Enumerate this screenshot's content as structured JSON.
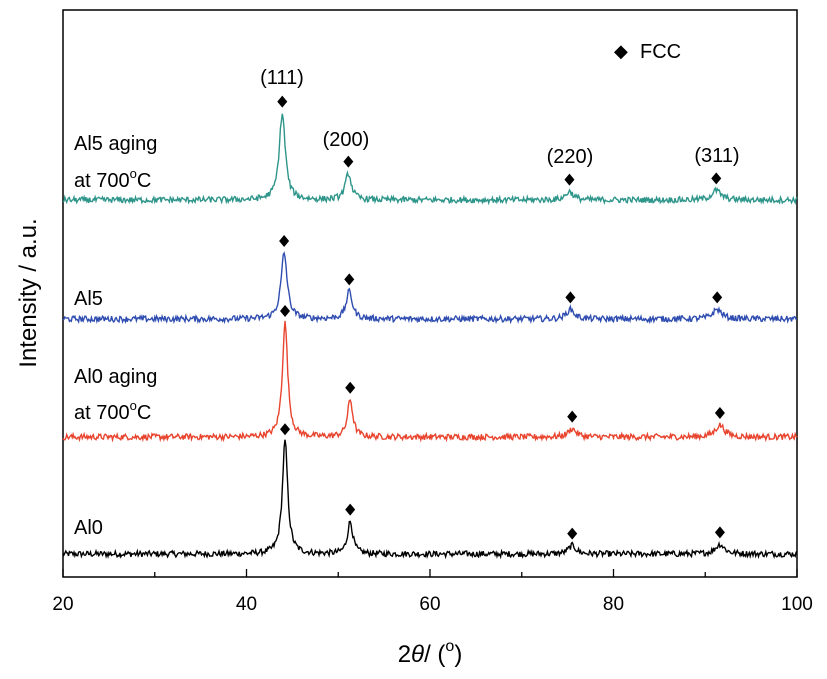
{
  "chart_data": {
    "type": "line",
    "xlabel": "2θ / (°)",
    "ylabel": "Intensity / a.u.",
    "xlim": [
      20,
      100
    ],
    "xticks": [
      20,
      40,
      60,
      80,
      100
    ],
    "xtick_labels": [
      "20",
      "40",
      "60",
      "80",
      "100"
    ],
    "yticks_shown": false,
    "grid": false,
    "legend": {
      "position": "top-right",
      "label": "FCC",
      "marker": "diamond"
    },
    "peak_markers_x": [
      44.2,
      51.3,
      75.5,
      91.5
    ],
    "peak_labels": [
      "(111)",
      "(200)",
      "(220)",
      "(311)"
    ],
    "series": [
      {
        "name": "Al0",
        "color": "#000000",
        "peaks": [
          {
            "x": 44.2,
            "height": 0.94,
            "width": 0.35
          },
          {
            "x": 51.3,
            "height": 0.27,
            "width": 0.35
          },
          {
            "x": 75.5,
            "height": 0.07,
            "width": 0.5
          },
          {
            "x": 91.6,
            "height": 0.08,
            "width": 0.6
          }
        ]
      },
      {
        "name": "Al0 aging at 700°C",
        "color": "#e8442e",
        "peaks": [
          {
            "x": 44.2,
            "height": 0.95,
            "width": 0.35
          },
          {
            "x": 51.3,
            "height": 0.31,
            "width": 0.35
          },
          {
            "x": 75.5,
            "height": 0.07,
            "width": 0.5
          },
          {
            "x": 91.6,
            "height": 0.1,
            "width": 0.6
          }
        ]
      },
      {
        "name": "Al5",
        "color": "#2f4db0",
        "peaks": [
          {
            "x": 44.1,
            "height": 0.55,
            "width": 0.4
          },
          {
            "x": 51.2,
            "height": 0.23,
            "width": 0.4
          },
          {
            "x": 75.3,
            "height": 0.08,
            "width": 0.5
          },
          {
            "x": 91.3,
            "height": 0.08,
            "width": 0.6
          }
        ]
      },
      {
        "name": "Al5 aging at 700°C",
        "color": "#2e958a",
        "peaks": [
          {
            "x": 43.9,
            "height": 0.72,
            "width": 0.4
          },
          {
            "x": 51.1,
            "height": 0.22,
            "width": 0.4
          },
          {
            "x": 75.2,
            "height": 0.07,
            "width": 0.5
          },
          {
            "x": 91.2,
            "height": 0.08,
            "width": 0.6
          }
        ]
      }
    ]
  },
  "labels": {
    "al5_aging_l1": "Al5 aging",
    "al5_aging_l2": "at 700",
    "al5": "Al5",
    "al0_aging_l1": "Al0 aging",
    "al0_aging_l2": "at 700",
    "al0": "Al0",
    "degree_sup": "o",
    "celsius": "C",
    "fcc": "FCC",
    "diamond_glyph": "◆",
    "xlabel_prefix": "2",
    "xlabel_theta": "θ",
    "xlabel_mid": "/ (",
    "xlabel_sup": "o",
    "xlabel_end": ")",
    "ylabel": "Intensity / a.u."
  },
  "colors": {
    "axis": "#000000",
    "background": "#ffffff"
  }
}
